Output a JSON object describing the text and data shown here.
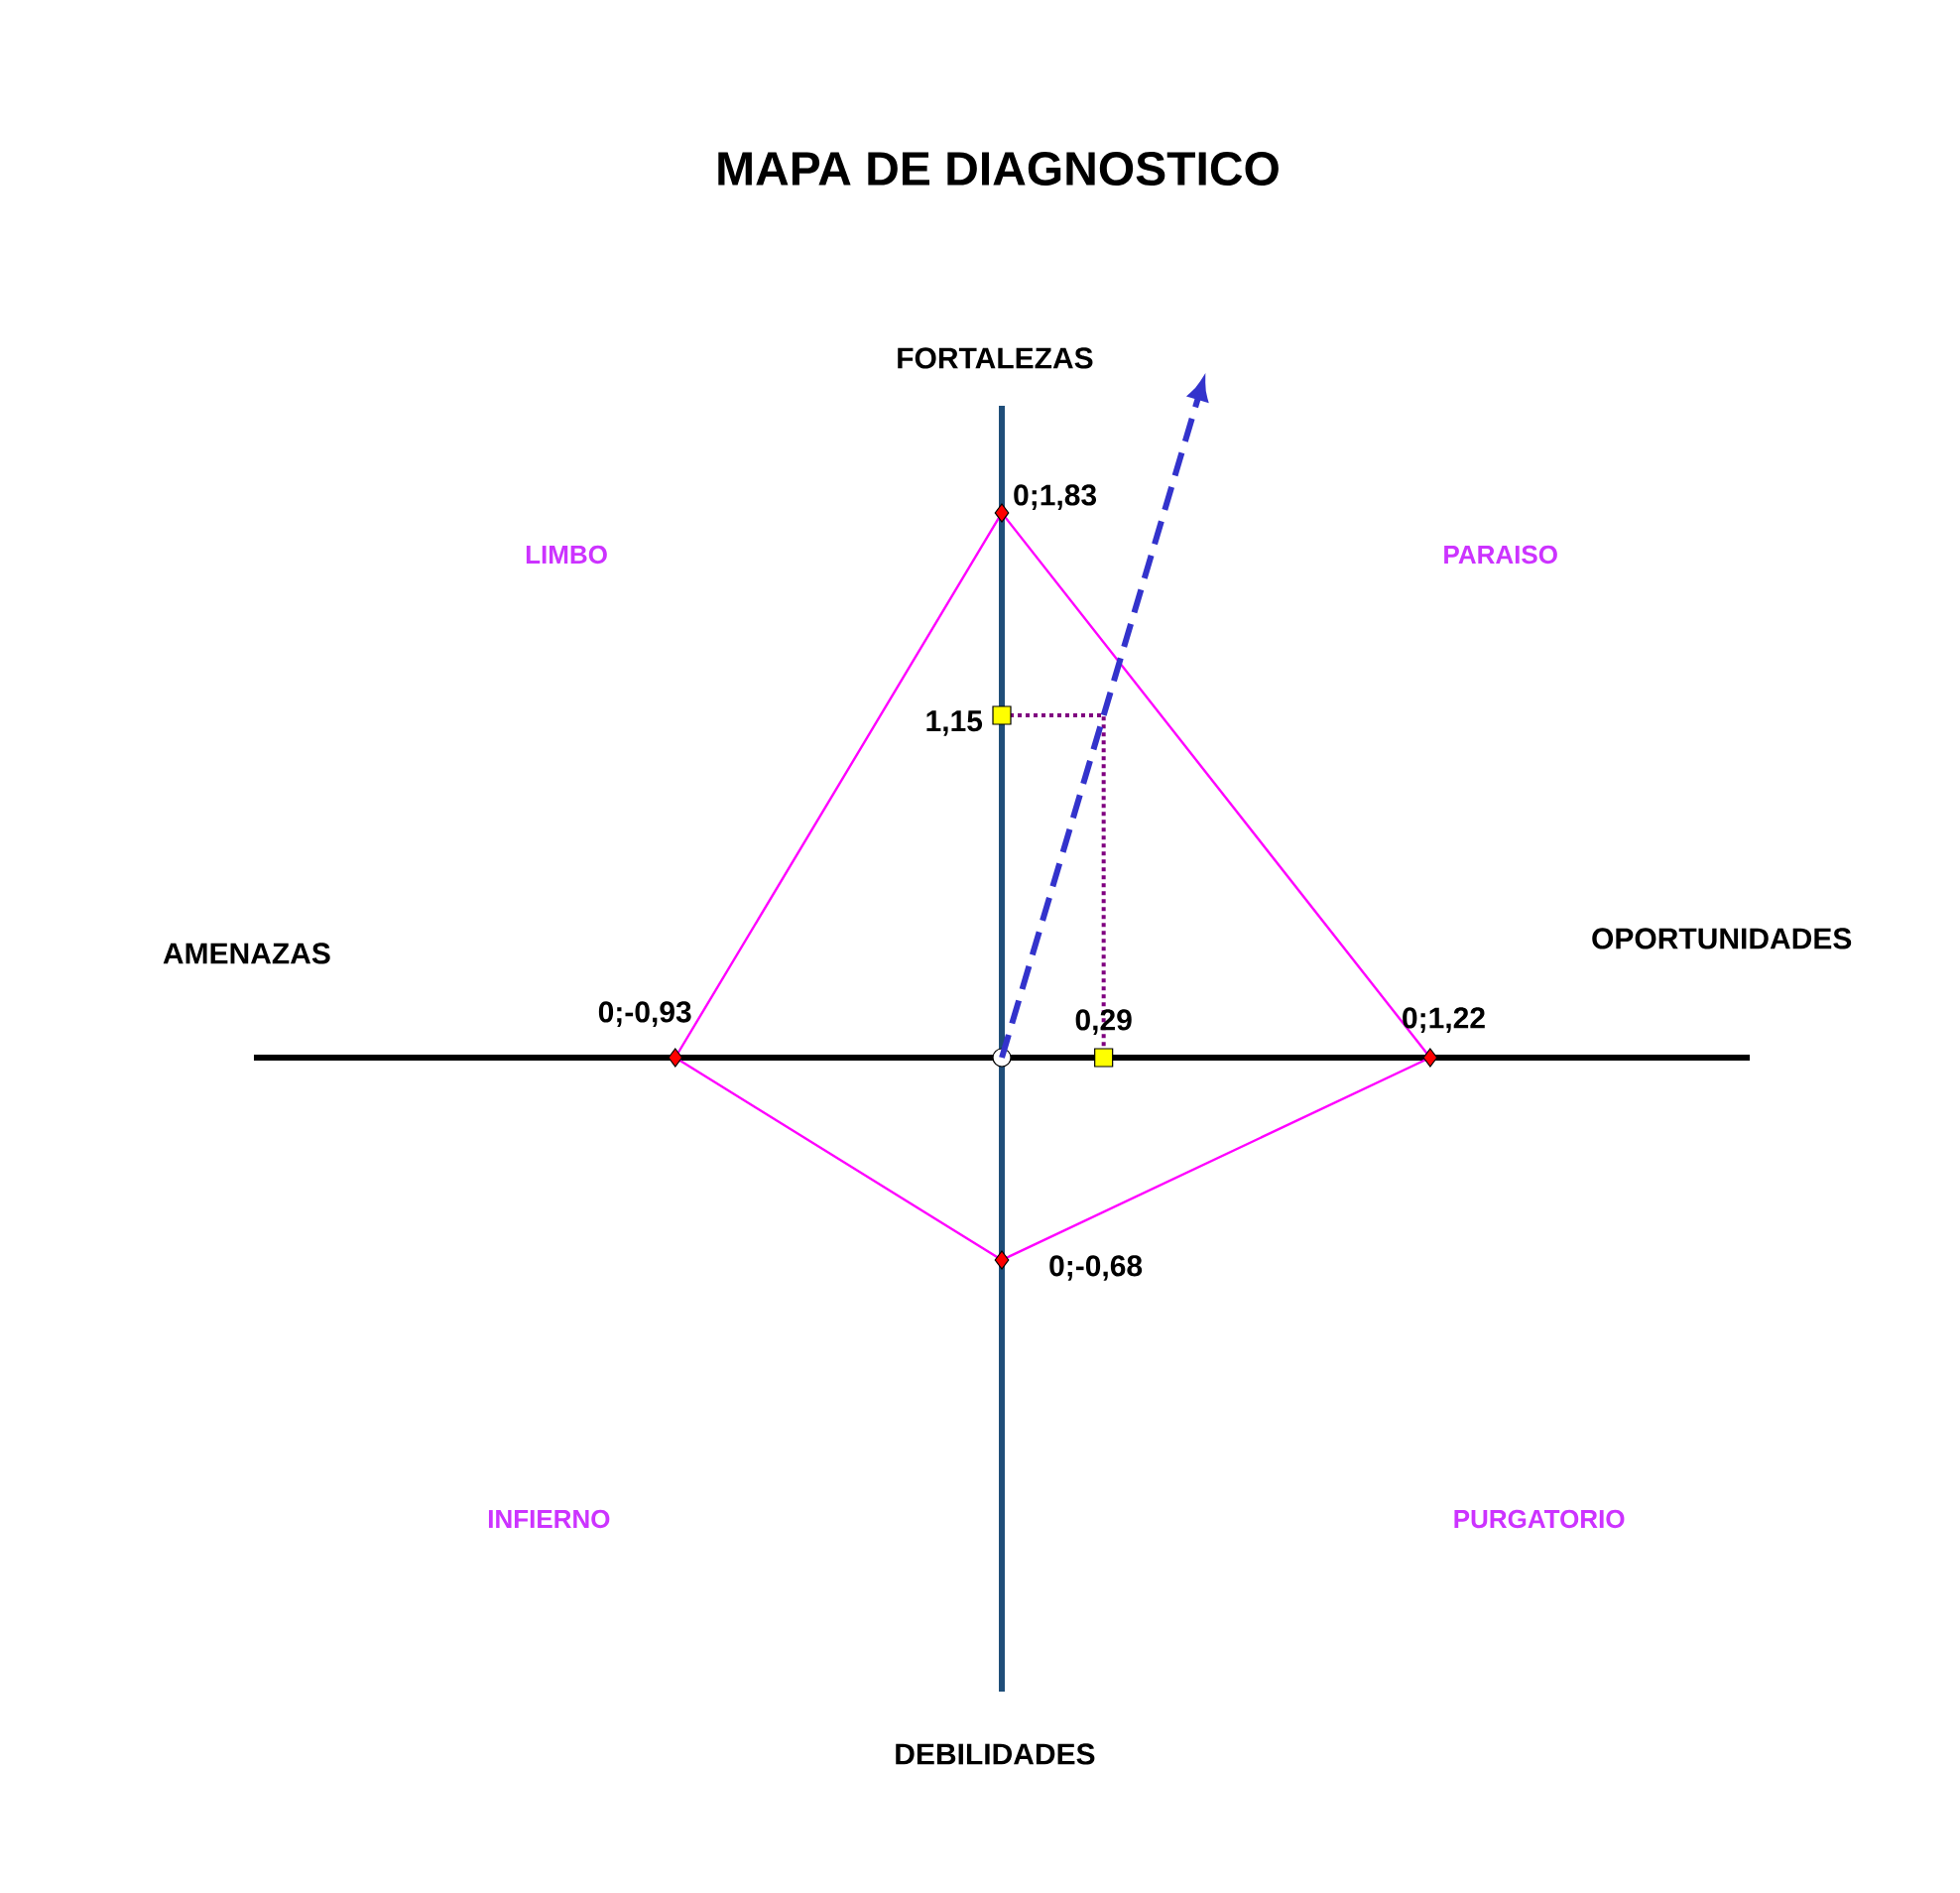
{
  "chart_data": {
    "type": "other",
    "title": "MAPA DE DIAGNOSTICO",
    "categories": [
      "FORTALEZAS",
      "OPORTUNIDADES",
      "DEBILIDADES",
      "AMENAZAS"
    ],
    "series": [
      {
        "color": "#ff00ff",
        "colors": [
          "#ff0000",
          "#ff0000",
          "#ff0000",
          "#ff0000"
        ],
        "marker": "diamond",
        "values": [
          1.83,
          1.22,
          -0.68,
          -0.93
        ],
        "value_labels": [
          "0;1,83",
          "0;1,22",
          "0;-0,68",
          "0;-0,93"
        ]
      },
      {
        "color": "#ffff00",
        "marker": "square",
        "values": [
          1.15,
          0.29,
          null,
          null
        ],
        "value_labels": [
          "1,15",
          "0,29",
          null,
          null
        ]
      }
    ],
    "annotations": [
      "LIMBO",
      "PARAISO",
      "INFIERNO",
      "PURGATORIO"
    ]
  }
}
